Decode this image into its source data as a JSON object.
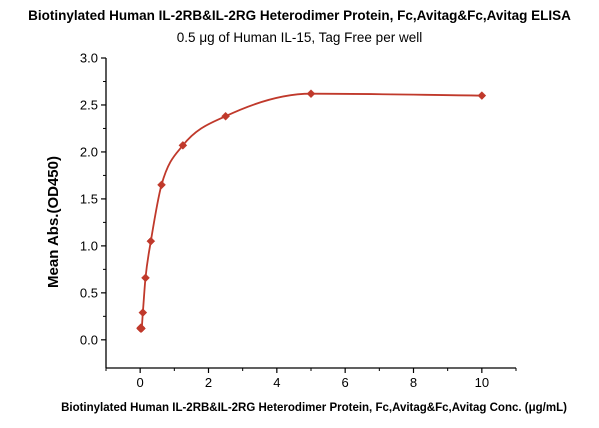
{
  "chart_data": {
    "type": "scatter",
    "title": "Biotinylated Human IL-2RB&IL-2RG Heterodimer Protein, Fc,Avitag&Fc,Avitag ELISA",
    "subtitle": "0.5 μg of Human IL-15, Tag Free per well",
    "xlabel": "Biotinylated Human IL-2RB&IL-2RG Heterodimer Protein, Fc,Avitag&Fc,Avitag Conc. (μg/mL)",
    "ylabel": "Mean Abs.(OD450)",
    "xlim": [
      -1,
      11
    ],
    "ylim": [
      -0.3,
      3.0
    ],
    "xticks": [
      0,
      2,
      4,
      6,
      8,
      10
    ],
    "yticks": [
      0.0,
      0.5,
      1.0,
      1.5,
      2.0,
      2.5,
      3.0
    ],
    "xtick_labels": [
      "0",
      "2",
      "4",
      "6",
      "8",
      "10"
    ],
    "ytick_labels": [
      "0.0",
      "0.5",
      "1.0",
      "1.5",
      "2.0",
      "2.5",
      "3.0"
    ],
    "grid": false,
    "color": "#c0392b",
    "series": [
      {
        "marker": "diamond",
        "x": [
          0.0098,
          0.0195,
          0.0391,
          0.0781,
          0.156,
          0.3125,
          0.625,
          1.25,
          2.5,
          5.0,
          10.0
        ],
        "y": [
          0.12,
          0.13,
          0.12,
          0.29,
          0.66,
          1.05,
          1.65,
          2.07,
          2.38,
          2.62,
          2.6
        ]
      }
    ],
    "fit_curve": true
  }
}
